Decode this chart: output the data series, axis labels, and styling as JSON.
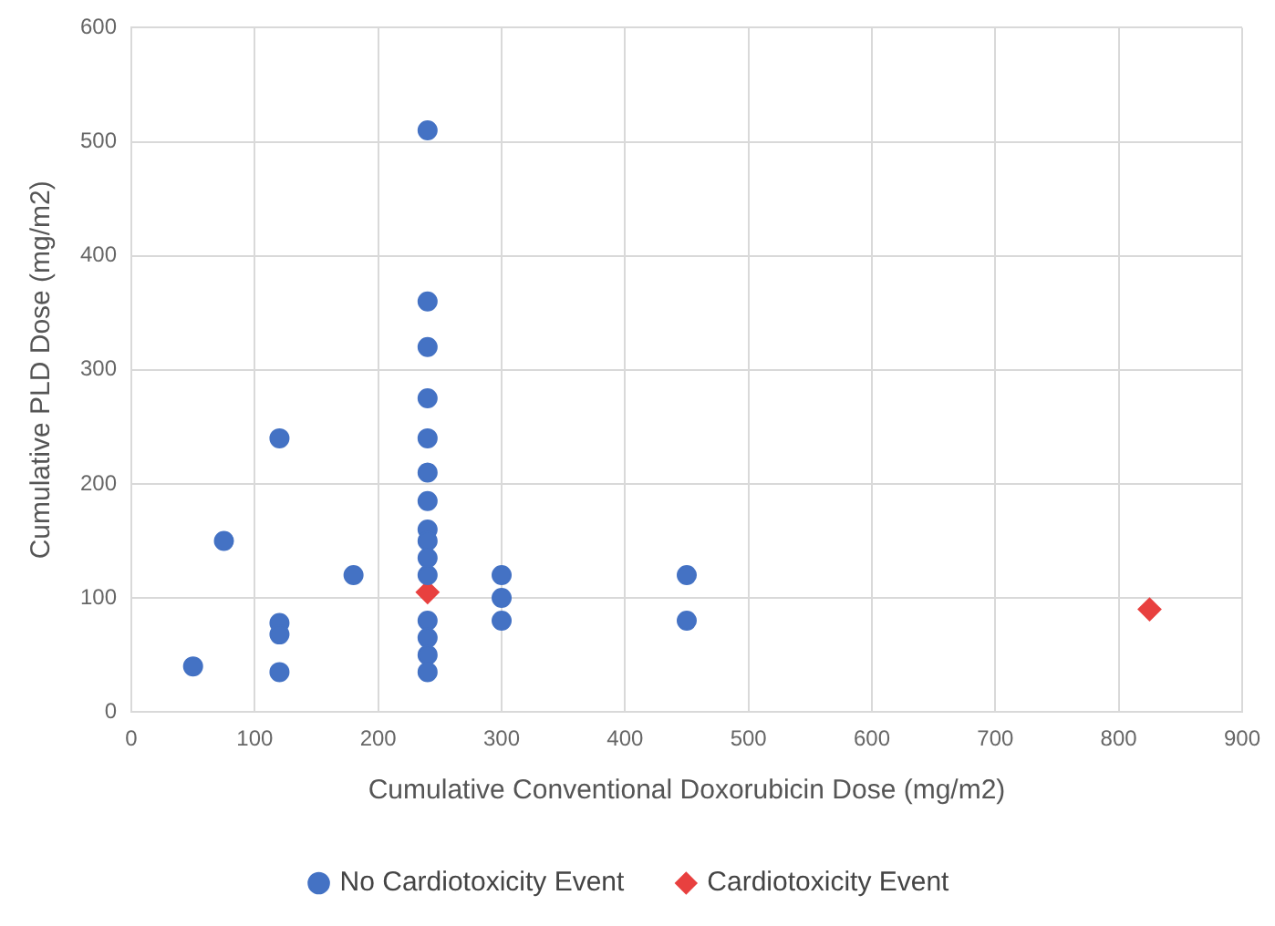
{
  "chart_data": {
    "type": "scatter",
    "xlabel": "Cumulative Conventional Doxorubicin Dose (mg/m2)",
    "ylabel": "Cumulative PLD Dose (mg/m2)",
    "series": [
      {
        "name": "No Cardiotoxicity Event",
        "color": "#4472c4",
        "marker": "circle",
        "x": [
          50,
          75,
          120,
          120,
          120,
          120,
          180,
          240,
          240,
          240,
          240,
          240,
          240,
          240,
          240,
          240,
          240,
          240,
          240,
          240,
          240,
          240,
          300,
          300,
          300,
          450,
          450
        ],
        "values": [
          40,
          150,
          240,
          78,
          68,
          35,
          120,
          510,
          360,
          320,
          275,
          240,
          210,
          185,
          160,
          150,
          135,
          120,
          80,
          65,
          50,
          35,
          120,
          100,
          80,
          120,
          80
        ]
      },
      {
        "name": "Cardiotoxicity Event",
        "color": "#e8403f",
        "marker": "diamond",
        "x": [
          240,
          825
        ],
        "values": [
          105,
          90
        ]
      }
    ],
    "xlim": [
      0,
      900
    ],
    "xticks": [
      0,
      100,
      200,
      300,
      400,
      500,
      600,
      700,
      800,
      900
    ],
    "ylim": [
      0,
      600
    ],
    "yticks": [
      0,
      100,
      200,
      300,
      400,
      500,
      600
    ],
    "grid": true,
    "legend": "bottom"
  }
}
